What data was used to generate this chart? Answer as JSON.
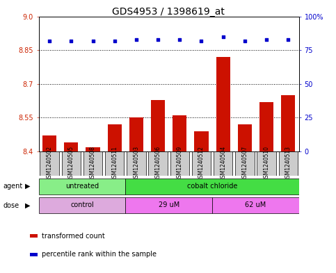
{
  "title": "GDS4953 / 1398619_at",
  "samples": [
    "GSM1240502",
    "GSM1240505",
    "GSM1240508",
    "GSM1240511",
    "GSM1240503",
    "GSM1240506",
    "GSM1240509",
    "GSM1240512",
    "GSM1240504",
    "GSM1240507",
    "GSM1240510",
    "GSM1240513"
  ],
  "bar_values": [
    8.47,
    8.44,
    8.42,
    8.52,
    8.55,
    8.63,
    8.56,
    8.49,
    8.82,
    8.52,
    8.62,
    8.65
  ],
  "percentile_values": [
    82,
    82,
    82,
    82,
    83,
    83,
    83,
    82,
    85,
    82,
    83,
    83
  ],
  "ylim_left": [
    8.4,
    9.0
  ],
  "ylim_right": [
    0,
    100
  ],
  "yticks_left": [
    8.4,
    8.55,
    8.7,
    8.85,
    9.0
  ],
  "yticks_right": [
    0,
    25,
    50,
    75,
    100
  ],
  "hlines": [
    8.55,
    8.7,
    8.85
  ],
  "bar_color": "#cc1100",
  "dot_color": "#0000cc",
  "bar_width": 0.65,
  "agent_labels": [
    {
      "label": "untreated",
      "start": 0,
      "end": 4,
      "color": "#88ee88"
    },
    {
      "label": "cobalt chloride",
      "start": 4,
      "end": 12,
      "color": "#44dd44"
    }
  ],
  "dose_labels": [
    {
      "label": "control",
      "start": 0,
      "end": 4,
      "color": "#ddaadd"
    },
    {
      "label": "29 uM",
      "start": 4,
      "end": 8,
      "color": "#ee77ee"
    },
    {
      "label": "62 uM",
      "start": 8,
      "end": 12,
      "color": "#ee77ee"
    }
  ],
  "legend_items": [
    {
      "color": "#cc1100",
      "label": "transformed count"
    },
    {
      "color": "#0000cc",
      "label": "percentile rank within the sample"
    }
  ],
  "tick_color_left": "#cc2200",
  "tick_color_right": "#0000cc",
  "sample_box_color": "#cccccc",
  "title_fontsize": 10,
  "label_fontsize": 7,
  "tick_fontsize": 7,
  "legend_fontsize": 7,
  "sample_fontsize": 5.5,
  "annot_fontsize": 7
}
